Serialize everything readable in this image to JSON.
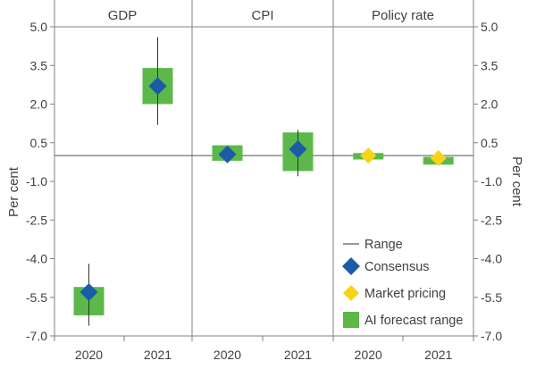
{
  "chart_data": {
    "type": "scatter",
    "y_axis_label_left": "Per cent",
    "y_axis_label_right": "Per cent",
    "ylim": [
      -7.0,
      5.0
    ],
    "y_ticks": [
      "5.0",
      "3.5",
      "2.0",
      "0.5",
      "-1.0",
      "-2.5",
      "-4.0",
      "-5.5",
      "-7.0"
    ],
    "panels": [
      {
        "title": "GDP",
        "categories": [
          "2020",
          "2021"
        ],
        "points": [
          {
            "year": "2020",
            "range": [
              -6.6,
              -4.2
            ],
            "consensus": -5.3,
            "market": null,
            "ai": [
              -6.2,
              -5.1
            ]
          },
          {
            "year": "2021",
            "range": [
              1.2,
              4.6
            ],
            "consensus": 2.7,
            "market": null,
            "ai": [
              2.0,
              3.4
            ]
          }
        ]
      },
      {
        "title": "CPI",
        "categories": [
          "2020",
          "2021"
        ],
        "points": [
          {
            "year": "2020",
            "range": null,
            "consensus": 0.05,
            "market": null,
            "ai": [
              -0.2,
              0.4
            ]
          },
          {
            "year": "2021",
            "range": [
              -0.8,
              1.0
            ],
            "consensus": 0.25,
            "market": null,
            "ai": [
              -0.6,
              0.9
            ]
          }
        ]
      },
      {
        "title": "Policy rate",
        "categories": [
          "2020",
          "2021"
        ],
        "points": [
          {
            "year": "2020",
            "range": null,
            "consensus": null,
            "market": 0.0,
            "ai": [
              -0.15,
              0.1
            ]
          },
          {
            "year": "2021",
            "range": [
              -0.35,
              0.1
            ],
            "consensus": null,
            "market": -0.1,
            "ai": [
              -0.35,
              -0.05
            ]
          }
        ]
      }
    ],
    "legend": {
      "position": "bottom-right",
      "entries": [
        "Range",
        "Consensus",
        "Market pricing",
        "AI forecast range"
      ]
    },
    "colors": {
      "consensus": "#1a5ca8",
      "market": "#f7d418",
      "ai": "#5cb84a",
      "range": "#333333",
      "frame": "#808080"
    }
  }
}
